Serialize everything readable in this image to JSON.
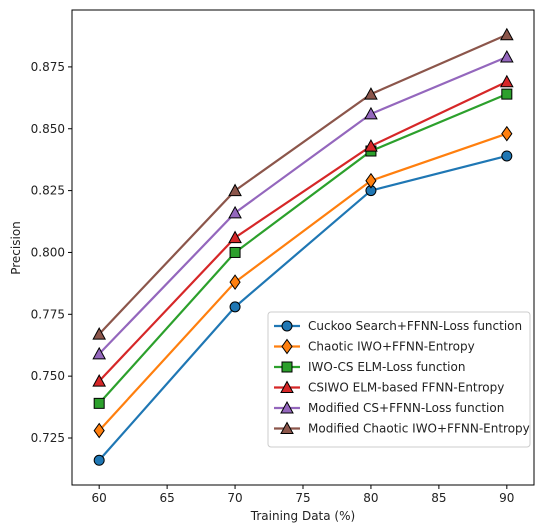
{
  "chart_data": {
    "type": "line",
    "xlabel": "Training Data (%)",
    "ylabel": "Precision",
    "x": [
      60,
      70,
      80,
      90
    ],
    "xlim": [
      58,
      92
    ],
    "ylim": [
      0.706,
      0.898
    ],
    "xticks": [
      60,
      65,
      70,
      75,
      80,
      85,
      90
    ],
    "yticks": [
      0.725,
      0.75,
      0.775,
      0.8,
      0.825,
      0.85,
      0.875
    ],
    "ytick_labels": [
      "0.725",
      "0.750",
      "0.775",
      "0.800",
      "0.825",
      "0.850",
      "0.875"
    ],
    "grid": false,
    "legend_position": "lower-right",
    "series": [
      {
        "name": "Cuckoo Search+FFNN-Loss function",
        "values": [
          0.716,
          0.778,
          0.825,
          0.839
        ],
        "color": "#1f77b4",
        "marker": "circle"
      },
      {
        "name": "Chaotic IWO+FFNN-Entropy",
        "values": [
          0.728,
          0.788,
          0.829,
          0.848
        ],
        "color": "#ff7f0e",
        "marker": "diamond"
      },
      {
        "name": "IWO-CS ELM-Loss function",
        "values": [
          0.739,
          0.8,
          0.841,
          0.864
        ],
        "color": "#2ca02c",
        "marker": "square"
      },
      {
        "name": "CSIWO ELM-based FFNN-Entropy",
        "values": [
          0.748,
          0.806,
          0.843,
          0.869
        ],
        "color": "#d62728",
        "marker": "triangle"
      },
      {
        "name": "Modified CS+FFNN-Loss function",
        "values": [
          0.759,
          0.816,
          0.856,
          0.879
        ],
        "color": "#9467bd",
        "marker": "triangle"
      },
      {
        "name": "Modified Chaotic IWO+FFNN-Entropy",
        "values": [
          0.767,
          0.825,
          0.864,
          0.888
        ],
        "color": "#8c564b",
        "marker": "triangle"
      }
    ]
  }
}
